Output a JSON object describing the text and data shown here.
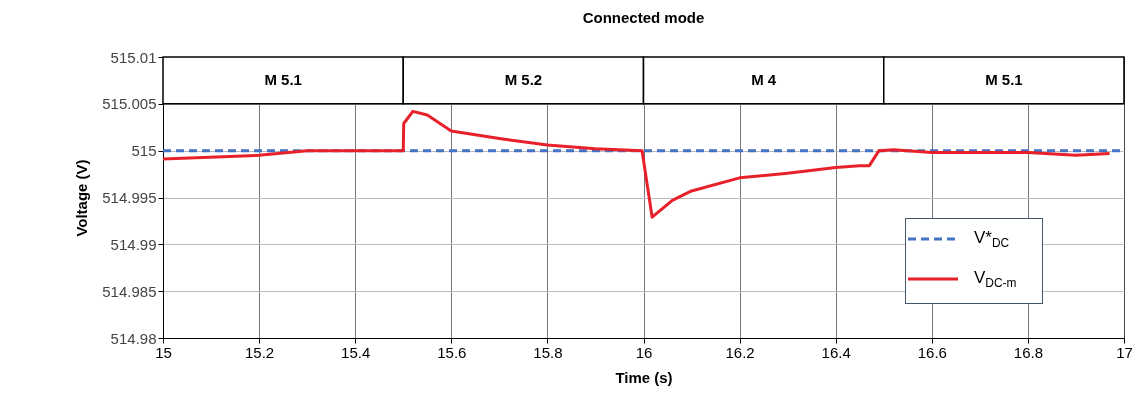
{
  "chart_data": {
    "type": "line",
    "title": "Connected mode",
    "xlabel": "Time (s)",
    "ylabel": "Voltage (V)",
    "xlim": [
      15,
      17
    ],
    "xticks": [
      15,
      15.2,
      15.4,
      15.6,
      15.8,
      16,
      16.2,
      16.4,
      16.6,
      16.8,
      17
    ],
    "ylim": [
      514.98,
      515.01
    ],
    "yticks": [
      514.98,
      514.985,
      514.99,
      514.995,
      515,
      515.005,
      515.01
    ],
    "grid": true,
    "legend": "bottom right",
    "bands": [
      {
        "axis": "x",
        "from": 15,
        "to": 15.5,
        "label": "M 5.1"
      },
      {
        "axis": "x",
        "from": 15.5,
        "to": 16,
        "label": "M 5.2"
      },
      {
        "axis": "x",
        "from": 16,
        "to": 16.5,
        "label": "M 4"
      },
      {
        "axis": "x",
        "from": 16.5,
        "to": 17,
        "label": "M 5.1"
      }
    ],
    "series": [
      {
        "name": "V*$_{DC}$",
        "color": "#4472c4",
        "line_style": "dashed",
        "x": [
          15,
          17
        ],
        "values": [
          515,
          515
        ]
      },
      {
        "name": "V$_{DC-m}$",
        "color": "#e8202a",
        "line_style": "solid",
        "x": [
          15,
          15.2,
          15.3,
          15.5,
          15.501,
          15.52,
          15.55,
          15.6,
          15.7,
          15.8,
          15.9,
          15.997,
          16.018,
          16.06,
          16.1,
          16.2,
          16.3,
          16.4,
          16.45,
          16.47,
          16.49,
          16.52,
          16.6,
          16.8,
          16.9,
          16.97
        ],
        "values": [
          514.9991,
          514.9995,
          515,
          515,
          515.0029,
          515.0042,
          515.0038,
          515.0021,
          515.0013,
          515.0006,
          515.0002,
          515,
          514.9929,
          514.9947,
          514.9957,
          514.9971,
          514.9976,
          514.9982,
          514.9984,
          514.9984,
          515,
          515.0001,
          514.9998,
          514.9998,
          514.9995,
          514.9997
        ]
      }
    ]
  }
}
